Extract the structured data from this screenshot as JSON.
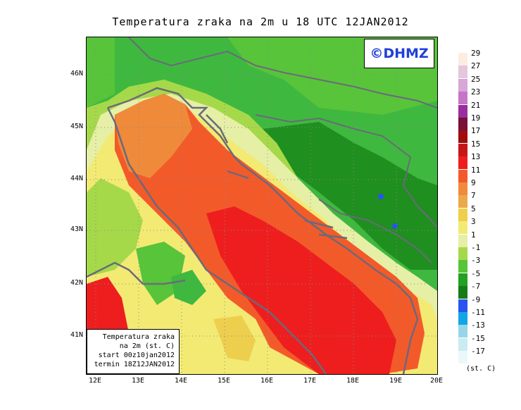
{
  "title": "Temperatura zraka na 2m u 18 UTC 12JAN2012",
  "watermark": "©DHMZ",
  "info_box": {
    "line1": "Temperatura zraka",
    "line2": "na 2m (st. C)",
    "line3": "start 00z10jan2012",
    "line4": "termin 18Z12JAN2012"
  },
  "latitude_labels": [
    "46N",
    "45N",
    "44N",
    "43N",
    "42N",
    "41N"
  ],
  "longitude_labels": [
    "12E",
    "13E",
    "14E",
    "15E",
    "16E",
    "17E",
    "18E",
    "19E",
    "20E"
  ],
  "legend": {
    "labels": [
      "29",
      "27",
      "25",
      "23",
      "21",
      "19",
      "17",
      "15",
      "13",
      "11",
      "9",
      "7",
      "5",
      "3",
      "1",
      "-1",
      "-3",
      "-5",
      "-7",
      "-9",
      "-11",
      "-13",
      "-15",
      "-17"
    ],
    "colors": [
      "#fbeede",
      "#e6c6dc",
      "#d8a6d8",
      "#c674c8",
      "#9a2e9e",
      "#7a0f3a",
      "#9e0e0e",
      "#c41818",
      "#ee1e1e",
      "#f35a2a",
      "#f3893a",
      "#eba94a",
      "#eecf4d",
      "#f3ea74",
      "#e6efa6",
      "#a6d94a",
      "#58c43a",
      "#22a122",
      "#167c16",
      "#2a52f0",
      "#12a6e6",
      "#96d6e8",
      "#c8ecf2",
      "#eaf8fb"
    ],
    "units": "(st. C)"
  }
}
